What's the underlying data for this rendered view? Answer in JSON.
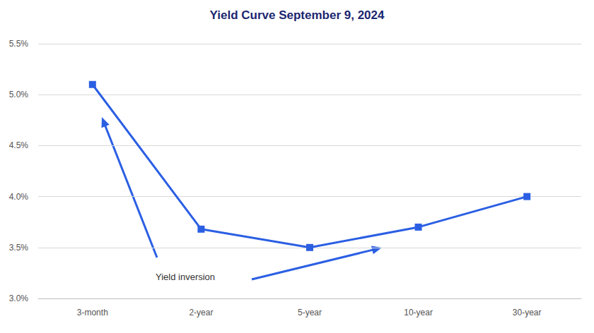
{
  "chart_data": {
    "type": "line",
    "title": "Yield Curve September 9, 2024",
    "categories": [
      "3-month",
      "2-year",
      "5-year",
      "10-year",
      "30-year"
    ],
    "values": [
      5.1,
      3.68,
      3.5,
      3.7,
      4.0
    ],
    "color": "#2b5fe3",
    "marker": "square",
    "ylim": [
      3.0,
      5.5
    ],
    "yticks": [
      {
        "value": 3.0,
        "label": "3.0%"
      },
      {
        "value": 3.5,
        "label": "3.5%"
      },
      {
        "value": 4.0,
        "label": "4.0%"
      },
      {
        "value": 4.5,
        "label": "4.5%"
      },
      {
        "value": 5.0,
        "label": "5.0%"
      },
      {
        "value": 5.5,
        "label": "5.5%"
      }
    ],
    "grid": true,
    "annotation": "Yield inversion"
  }
}
